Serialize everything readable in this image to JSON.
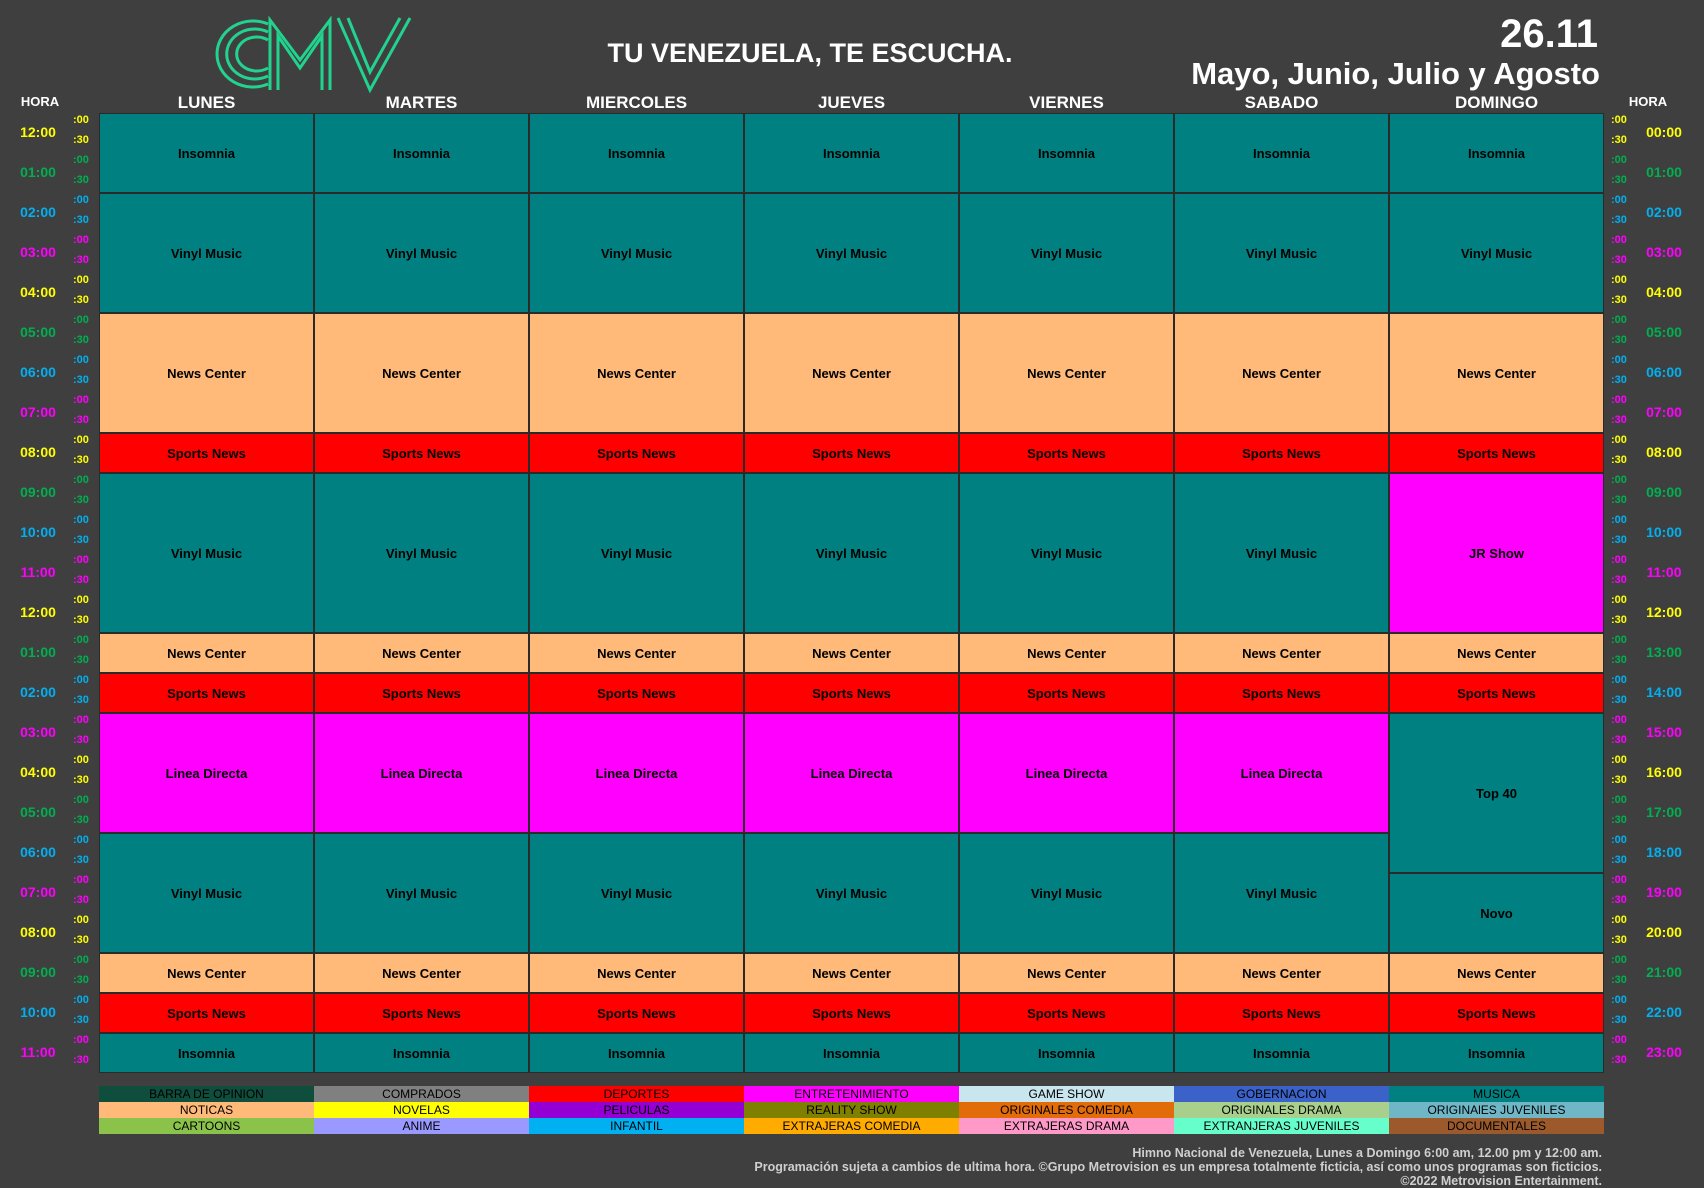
{
  "header": {
    "logo_text": "CMV",
    "tagline": "TU VENEZUELA, TE ESCUCHA.",
    "date": "26.11",
    "months": "Mayo, Junio, Julio y Agosto"
  },
  "hora_label": "HORA",
  "days": [
    "LUNES",
    "MARTES",
    "MIERCOLES",
    "JUEVES",
    "VIERNES",
    "SABADO",
    "DOMINGO"
  ],
  "minute_marks": [
    ":00",
    ":30"
  ],
  "left_hours": [
    "12:00",
    "01:00",
    "02:00",
    "03:00",
    "04:00",
    "05:00",
    "06:00",
    "07:00",
    "08:00",
    "09:00",
    "10:00",
    "11:00",
    "12:00",
    "01:00",
    "02:00",
    "03:00",
    "04:00",
    "05:00",
    "06:00",
    "07:00",
    "08:00",
    "09:00",
    "10:00",
    "11:00"
  ],
  "right_hours": [
    "00:00",
    "01:00",
    "02:00",
    "03:00",
    "04:00",
    "05:00",
    "06:00",
    "07:00",
    "08:00",
    "09:00",
    "10:00",
    "11:00",
    "12:00",
    "13:00",
    "14:00",
    "15:00",
    "16:00",
    "17:00",
    "18:00",
    "19:00",
    "20:00",
    "21:00",
    "22:00",
    "23:00"
  ],
  "hour_colors": [
    "#ffff00",
    "#00b050",
    "#00b0f0",
    "#ff00ff"
  ],
  "category_colors": {
    "musica": "#008080",
    "noticias": "#ffb978",
    "deportes": "#ff0000",
    "entretenimiento": "#ff00ff"
  },
  "weekday_schedule": [
    {
      "title": "Insomnia",
      "start": 0,
      "end": 2,
      "category": "musica"
    },
    {
      "title": "Vinyl Music",
      "start": 2,
      "end": 5,
      "category": "musica"
    },
    {
      "title": "News Center",
      "start": 5,
      "end": 8,
      "category": "noticias"
    },
    {
      "title": "Sports News",
      "start": 8,
      "end": 9,
      "category": "deportes"
    },
    {
      "title": "Vinyl Music",
      "start": 9,
      "end": 13,
      "category": "musica"
    },
    {
      "title": "News Center",
      "start": 13,
      "end": 14,
      "category": "noticias"
    },
    {
      "title": "Sports News",
      "start": 14,
      "end": 15,
      "category": "deportes"
    },
    {
      "title": "Linea Directa",
      "start": 15,
      "end": 18,
      "category": "entretenimiento"
    },
    {
      "title": "Vinyl Music",
      "start": 18,
      "end": 21,
      "category": "musica"
    },
    {
      "title": "News Center",
      "start": 21,
      "end": 22,
      "category": "noticias"
    },
    {
      "title": "Sports News",
      "start": 22,
      "end": 23,
      "category": "deportes"
    },
    {
      "title": "Insomnia",
      "start": 23,
      "end": 24,
      "category": "musica"
    }
  ],
  "sunday_schedule": [
    {
      "title": "Insomnia",
      "start": 0,
      "end": 2,
      "category": "musica"
    },
    {
      "title": "Vinyl Music",
      "start": 2,
      "end": 5,
      "category": "musica"
    },
    {
      "title": "News Center",
      "start": 5,
      "end": 8,
      "category": "noticias"
    },
    {
      "title": "Sports News",
      "start": 8,
      "end": 9,
      "category": "deportes"
    },
    {
      "title": "JR Show",
      "start": 9,
      "end": 13,
      "category": "entretenimiento"
    },
    {
      "title": "News Center",
      "start": 13,
      "end": 14,
      "category": "noticias"
    },
    {
      "title": "Sports News",
      "start": 14,
      "end": 15,
      "category": "deportes"
    },
    {
      "title": "Top 40",
      "start": 15,
      "end": 19,
      "category": "musica"
    },
    {
      "title": "Novo",
      "start": 19,
      "end": 21,
      "category": "musica"
    },
    {
      "title": "News Center",
      "start": 21,
      "end": 22,
      "category": "noticias"
    },
    {
      "title": "Sports News",
      "start": 22,
      "end": 23,
      "category": "deportes"
    },
    {
      "title": "Insomnia",
      "start": 23,
      "end": 24,
      "category": "musica"
    }
  ],
  "legend": [
    [
      {
        "label": "BARRA DE OPINION",
        "color": "#0f4d3c"
      },
      {
        "label": "COMPRADOS",
        "color": "#808080"
      },
      {
        "label": "DEPORTES",
        "color": "#ff0000"
      },
      {
        "label": "ENTRETENIMIENTO",
        "color": "#ff00ff"
      },
      {
        "label": "GAME SHOW",
        "color": "#c9e6ef"
      },
      {
        "label": "GOBERNACION",
        "color": "#3a62c8"
      },
      {
        "label": "MUSICA",
        "color": "#008080"
      }
    ],
    [
      {
        "label": "NOTICAS",
        "color": "#ffb978"
      },
      {
        "label": "NOVELAS",
        "color": "#ffff00"
      },
      {
        "label": "PELICULAS",
        "color": "#9400d3"
      },
      {
        "label": "REALITY SHOW",
        "color": "#808000"
      },
      {
        "label": "ORIGINALES COMEDIA",
        "color": "#e26b0a"
      },
      {
        "label": "ORIGINALES DRAMA",
        "color": "#a9cf8c"
      },
      {
        "label": "ORIGINAlES JUVENILES",
        "color": "#6fb7c6"
      }
    ],
    [
      {
        "label": "CARTOONS",
        "color": "#8bc34a"
      },
      {
        "label": "ANIME",
        "color": "#9999ff"
      },
      {
        "label": "INFANTIL",
        "color": "#00b0f0"
      },
      {
        "label": "EXTRAJERAS COMEDIA",
        "color": "#ffab00"
      },
      {
        "label": "EXTRAJERAS DRAMA",
        "color": "#ff99c8"
      },
      {
        "label": "EXTRANJERAS JUVENILES",
        "color": "#66ffcc"
      },
      {
        "label": "DOCUMENTALES",
        "color": "#9c5a2c"
      }
    ]
  ],
  "footer": [
    "Himno Nacional de Venezuela, Lunes a Domingo 6:00 am, 12.00 pm y 12:00 am.",
    "Programación sujeta a cambios de ultima hora. ©Grupo Metrovision es un empresa totalmente ficticia, así como unos programas son ficticios.",
    "©2022 Metrovision Entertainment."
  ]
}
